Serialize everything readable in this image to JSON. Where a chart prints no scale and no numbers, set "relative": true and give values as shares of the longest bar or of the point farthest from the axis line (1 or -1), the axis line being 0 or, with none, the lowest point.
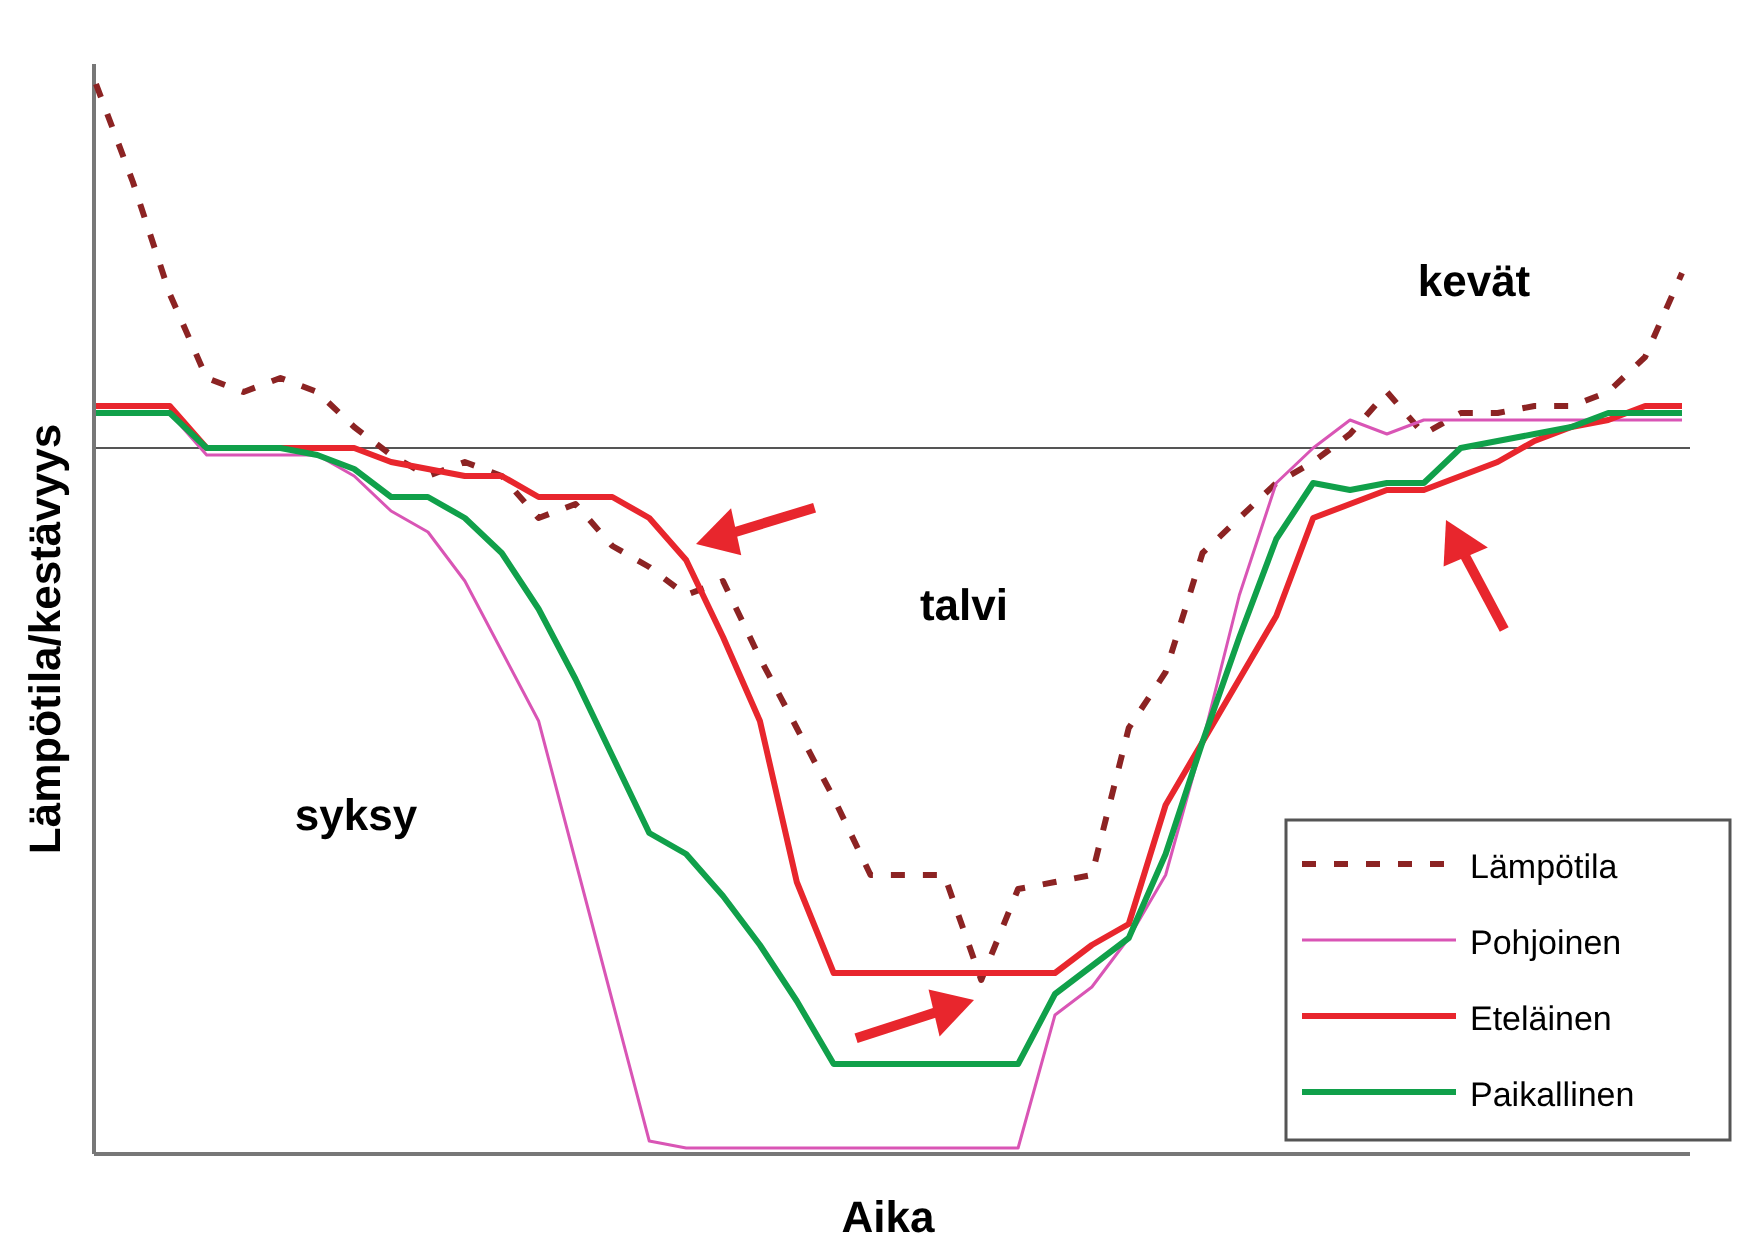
{
  "chart_data": {
    "type": "line",
    "relative": true,
    "xlabel": "Aika",
    "ylabel": "Lämpötila/kestävyys",
    "legend": "bottom right",
    "categories": [
      null,
      null,
      null,
      null,
      null,
      null,
      null,
      null,
      null,
      null,
      null,
      null,
      null,
      null,
      null,
      null,
      null,
      null,
      null,
      null,
      null,
      null,
      null,
      null,
      null,
      null,
      null,
      null,
      null,
      null,
      null,
      null,
      null,
      null,
      null,
      null,
      null,
      null,
      null,
      null,
      null,
      null,
      null,
      null
    ],
    "series": [
      {
        "name": "Lämpötila",
        "color": "#8c2323",
        "line_style": "dashed",
        "values": [
          0.52,
          0.38,
          0.22,
          0.1,
          0.08,
          0.1,
          0.08,
          0.03,
          -0.01,
          -0.04,
          -0.02,
          -0.04,
          -0.1,
          -0.08,
          -0.14,
          -0.17,
          -0.21,
          -0.19,
          -0.3,
          -0.4,
          -0.5,
          -0.61,
          -0.61,
          -0.61,
          -0.76,
          -0.63,
          -0.62,
          -0.61,
          -0.4,
          -0.32,
          -0.15,
          -0.1,
          -0.05,
          -0.02,
          0.02,
          0.08,
          0.02,
          0.05,
          0.05,
          0.06,
          0.06,
          0.08,
          0.13,
          0.25
        ]
      },
      {
        "name": "Pohjoinen",
        "color": "#d955b5",
        "line_style": "solid",
        "values": [
          0.05,
          0.05,
          0.05,
          -0.01,
          -0.01,
          -0.01,
          -0.01,
          -0.04,
          -0.09,
          -0.12,
          -0.19,
          -0.29,
          -0.39,
          -0.59,
          -0.79,
          -0.99,
          -1,
          -1,
          -1,
          -1,
          -1,
          -1,
          -1,
          -1,
          -1,
          -1,
          -0.81,
          -0.77,
          -0.7,
          -0.61,
          -0.42,
          -0.21,
          -0.05,
          0,
          0.04,
          0.02,
          0.04,
          0.04,
          0.04,
          0.04,
          0.04,
          0.04,
          0.04,
          0.04
        ]
      },
      {
        "name": "Eteläinen",
        "color": "#e8262d",
        "line_style": "solid",
        "values": [
          0.06,
          0.06,
          0.06,
          0,
          0,
          0,
          0,
          0,
          -0.02,
          -0.03,
          -0.04,
          -0.04,
          -0.07,
          -0.07,
          -0.07,
          -0.1,
          -0.16,
          -0.27,
          -0.39,
          -0.62,
          -0.75,
          -0.75,
          -0.75,
          -0.75,
          -0.75,
          -0.75,
          -0.75,
          -0.71,
          -0.68,
          -0.51,
          -0.42,
          -0.33,
          -0.24,
          -0.1,
          -0.08,
          -0.06,
          -0.06,
          -0.04,
          -0.02,
          0.01,
          0.03,
          0.04,
          0.06,
          0.06
        ]
      },
      {
        "name": "Paikallinen",
        "color": "#10a04a",
        "line_style": "solid",
        "values": [
          0.05,
          0.05,
          0.05,
          0,
          0,
          0,
          -0.01,
          -0.03,
          -0.07,
          -0.07,
          -0.1,
          -0.15,
          -0.23,
          -0.33,
          -0.44,
          -0.55,
          -0.58,
          -0.64,
          -0.71,
          -0.79,
          -0.88,
          -0.88,
          -0.88,
          -0.88,
          -0.88,
          -0.88,
          -0.78,
          -0.74,
          -0.7,
          -0.58,
          -0.42,
          -0.27,
          -0.13,
          -0.05,
          -0.06,
          -0.05,
          -0.05,
          0,
          0.01,
          0.02,
          0.03,
          0.05,
          0.05,
          0.05
        ]
      }
    ],
    "annotations": [
      "syksy",
      "talvi",
      "kevät"
    ]
  }
}
